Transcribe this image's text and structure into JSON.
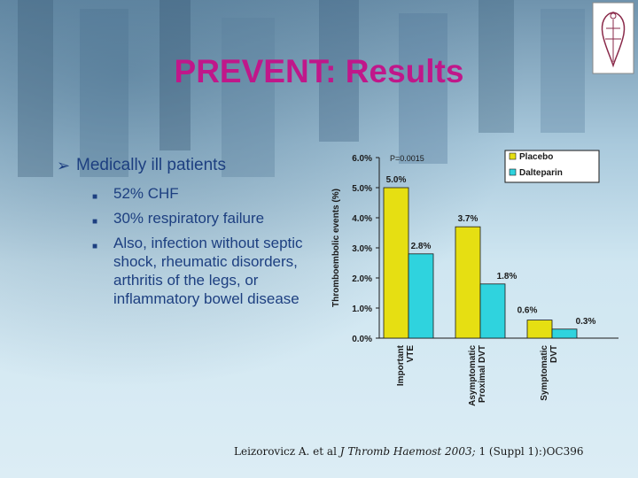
{
  "slide": {
    "title": "PREVENT: Results",
    "main_bullet": "Medically ill patients",
    "sub_bullets": [
      "52% CHF",
      "30% respiratory failure",
      "Also, infection without septic shock, rheumatic disorders, arthritis of the legs, or inflammatory bowel disease"
    ],
    "citation_plain": "Leizorovicz A. et al ",
    "citation_journal": "J Thromb Haemost 2003;",
    "citation_rest": " 1 (Suppl 1):)OC396"
  },
  "chart_data": {
    "type": "bar",
    "ylabel": "Thromboembolic events (%)",
    "ylim": [
      0,
      6
    ],
    "yticks": [
      "0.0%",
      "1.0%",
      "2.0%",
      "3.0%",
      "4.0%",
      "5.0%",
      "6.0%"
    ],
    "categories": [
      "Important VTE",
      "Asymptomatic Proximal DVT",
      "Symptomatic DVT"
    ],
    "series": [
      {
        "name": "Placebo",
        "values": [
          5.0,
          3.7,
          0.6
        ],
        "labels": [
          "5.0%",
          "3.7%",
          "0.6%"
        ],
        "color": "#e6df12"
      },
      {
        "name": "Dalteparin",
        "values": [
          2.8,
          1.8,
          0.3
        ],
        "labels": [
          "2.8%",
          "1.8%",
          "0.3%"
        ],
        "color": "#2fd3de"
      }
    ],
    "annotation": "P=0.0015",
    "legend": "top-right",
    "grid": false
  }
}
